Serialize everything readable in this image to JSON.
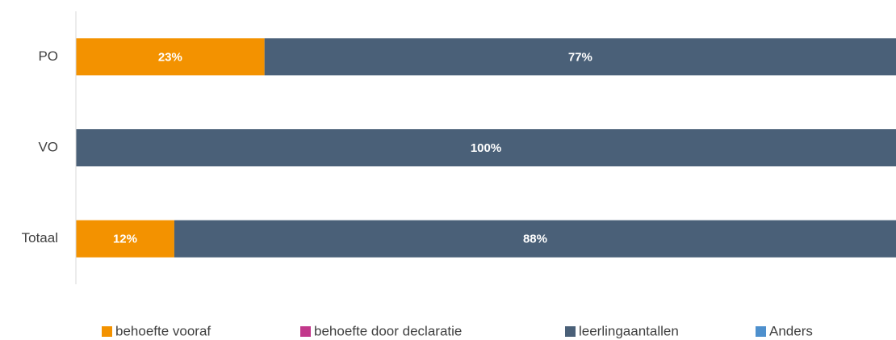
{
  "chart_data": {
    "type": "stacked-bar-horizontal",
    "categories": [
      "PO",
      "VO",
      "Totaal"
    ],
    "xlim": [
      0,
      100
    ],
    "series": [
      {
        "name": "behoefte vooraf",
        "color": "#f39200",
        "values": [
          23,
          0,
          12
        ],
        "value_labels": [
          "23%",
          null,
          "12%"
        ]
      },
      {
        "name": "behoefte door declaratie",
        "color": "#c2388b",
        "values": [
          0,
          0,
          0
        ],
        "value_labels": [
          null,
          null,
          null
        ]
      },
      {
        "name": "leerlingaantallen",
        "color": "#4a6078",
        "values": [
          77,
          100,
          88
        ],
        "value_labels": [
          "77%",
          "100%",
          "88%"
        ]
      },
      {
        "name": "Anders",
        "color": "#4e90cd",
        "values": [
          0,
          0,
          0
        ],
        "value_labels": [
          null,
          null,
          null
        ]
      }
    ]
  }
}
